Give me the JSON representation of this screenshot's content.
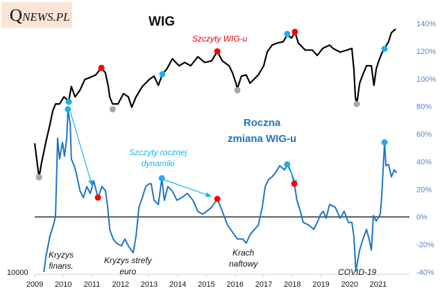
{
  "logo": {
    "q": "Q",
    "rest": "NEWS.PL",
    "bg": "#fbe5d6"
  },
  "chart_data": {
    "type": "line",
    "x_axis": {
      "ticks": [
        "2009",
        "2010",
        "2011",
        "2012",
        "2013",
        "2014",
        "2015",
        "2016",
        "2017",
        "2018",
        "2019",
        "2020",
        "2021"
      ],
      "range": [
        2009,
        2022
      ]
    },
    "left_axis": {
      "tick_labels": [
        "10000"
      ],
      "range": [
        10000,
        70000
      ]
    },
    "right_axis": {
      "tick_labels": [
        "140%",
        "120%",
        "100%",
        "80%",
        "60%",
        "40%",
        "20%",
        "0%",
        "-20%",
        "-40%"
      ],
      "range": [
        -40,
        140
      ]
    },
    "series": [
      {
        "id": "wig",
        "name": "WIG",
        "axis": "left",
        "color": "#000000",
        "points": [
          [
            2009.0,
            41100
          ],
          [
            2009.15,
            32900
          ],
          [
            2009.24,
            36400
          ],
          [
            2009.39,
            41400
          ],
          [
            2009.53,
            45600
          ],
          [
            2009.63,
            48900
          ],
          [
            2009.73,
            50600
          ],
          [
            2009.87,
            50600
          ],
          [
            2010.02,
            52300
          ],
          [
            2010.19,
            51300
          ],
          [
            2010.28,
            54800
          ],
          [
            2010.41,
            52300
          ],
          [
            2010.58,
            53900
          ],
          [
            2010.75,
            56500
          ],
          [
            2010.94,
            57000
          ],
          [
            2011.13,
            57600
          ],
          [
            2011.33,
            59300
          ],
          [
            2011.47,
            58100
          ],
          [
            2011.57,
            54800
          ],
          [
            2011.62,
            52300
          ],
          [
            2011.72,
            50600
          ],
          [
            2011.91,
            50600
          ],
          [
            2012.1,
            53100
          ],
          [
            2012.27,
            52300
          ],
          [
            2012.39,
            49800
          ],
          [
            2012.54,
            52300
          ],
          [
            2012.76,
            54800
          ],
          [
            2013.0,
            56500
          ],
          [
            2013.17,
            57300
          ],
          [
            2013.32,
            55100
          ],
          [
            2013.46,
            57800
          ],
          [
            2013.61,
            59000
          ],
          [
            2013.81,
            61500
          ],
          [
            2014.04,
            59800
          ],
          [
            2014.24,
            60600
          ],
          [
            2014.45,
            59800
          ],
          [
            2014.7,
            62000
          ],
          [
            2014.94,
            60600
          ],
          [
            2015.18,
            61000
          ],
          [
            2015.38,
            63300
          ],
          [
            2015.55,
            61000
          ],
          [
            2015.79,
            59800
          ],
          [
            2015.91,
            58100
          ],
          [
            2016.03,
            55600
          ],
          [
            2016.08,
            54300
          ],
          [
            2016.22,
            57300
          ],
          [
            2016.39,
            57600
          ],
          [
            2016.52,
            55600
          ],
          [
            2016.81,
            57600
          ],
          [
            2017.0,
            59800
          ],
          [
            2017.12,
            63100
          ],
          [
            2017.29,
            64800
          ],
          [
            2017.48,
            65300
          ],
          [
            2017.68,
            65600
          ],
          [
            2017.82,
            67300
          ],
          [
            2017.97,
            66500
          ],
          [
            2018.09,
            68000
          ],
          [
            2018.21,
            65300
          ],
          [
            2018.45,
            63600
          ],
          [
            2018.7,
            63600
          ],
          [
            2018.87,
            62300
          ],
          [
            2019.06,
            64000
          ],
          [
            2019.3,
            64800
          ],
          [
            2019.42,
            64000
          ],
          [
            2019.67,
            63100
          ],
          [
            2019.91,
            63600
          ],
          [
            2020.08,
            64000
          ],
          [
            2020.15,
            59000
          ],
          [
            2020.2,
            52300
          ],
          [
            2020.25,
            50600
          ],
          [
            2020.35,
            55600
          ],
          [
            2020.44,
            57300
          ],
          [
            2020.59,
            59800
          ],
          [
            2020.76,
            59800
          ],
          [
            2020.85,
            55100
          ],
          [
            2020.93,
            59000
          ],
          [
            2021.0,
            60600
          ],
          [
            2021.12,
            62800
          ],
          [
            2021.22,
            64000
          ],
          [
            2021.36,
            65600
          ],
          [
            2021.46,
            67800
          ],
          [
            2021.61,
            68700
          ]
        ]
      },
      {
        "id": "chg",
        "name": "Roczna zmiana WIG-u",
        "axis": "right",
        "color": "#1f72c4",
        "points": [
          [
            2009.32,
            -40
          ],
          [
            2009.39,
            -29
          ],
          [
            2009.53,
            -14
          ],
          [
            2009.68,
            -4
          ],
          [
            2009.73,
            2
          ],
          [
            2009.8,
            57
          ],
          [
            2009.87,
            42
          ],
          [
            2009.97,
            54
          ],
          [
            2010.04,
            44
          ],
          [
            2010.12,
            57
          ],
          [
            2010.16,
            78
          ],
          [
            2010.24,
            67
          ],
          [
            2010.28,
            42
          ],
          [
            2010.38,
            37
          ],
          [
            2010.45,
            32
          ],
          [
            2010.58,
            19
          ],
          [
            2010.7,
            14
          ],
          [
            2010.82,
            22
          ],
          [
            2010.94,
            17
          ],
          [
            2011.06,
            26
          ],
          [
            2011.21,
            14
          ],
          [
            2011.35,
            22
          ],
          [
            2011.47,
            19
          ],
          [
            2011.55,
            7
          ],
          [
            2011.62,
            -9
          ],
          [
            2011.74,
            -16
          ],
          [
            2011.86,
            -19
          ],
          [
            2012.03,
            -21
          ],
          [
            2012.15,
            -16
          ],
          [
            2012.27,
            -21
          ],
          [
            2012.44,
            -26
          ],
          [
            2012.54,
            -14
          ],
          [
            2012.64,
            7
          ],
          [
            2012.76,
            14
          ],
          [
            2012.88,
            22
          ],
          [
            2013.0,
            24
          ],
          [
            2013.07,
            24
          ],
          [
            2013.17,
            12
          ],
          [
            2013.32,
            9
          ],
          [
            2013.44,
            28
          ],
          [
            2013.53,
            12
          ],
          [
            2013.65,
            22
          ],
          [
            2013.8,
            19
          ],
          [
            2013.97,
            12
          ],
          [
            2014.14,
            14
          ],
          [
            2014.33,
            17
          ],
          [
            2014.53,
            12
          ],
          [
            2014.7,
            4
          ],
          [
            2014.87,
            2
          ],
          [
            2015.01,
            4
          ],
          [
            2015.18,
            7
          ],
          [
            2015.38,
            13
          ],
          [
            2015.5,
            7
          ],
          [
            2015.59,
            2
          ],
          [
            2015.74,
            -6
          ],
          [
            2015.91,
            -11
          ],
          [
            2016.08,
            -16
          ],
          [
            2016.27,
            -16
          ],
          [
            2016.39,
            -19
          ],
          [
            2016.52,
            -13
          ],
          [
            2016.68,
            -9
          ],
          [
            2016.81,
            -6
          ],
          [
            2016.95,
            7
          ],
          [
            2017.05,
            22
          ],
          [
            2017.17,
            27
          ],
          [
            2017.29,
            29
          ],
          [
            2017.41,
            32
          ],
          [
            2017.56,
            37
          ],
          [
            2017.73,
            34
          ],
          [
            2017.82,
            38
          ],
          [
            2017.97,
            32
          ],
          [
            2018.07,
            24
          ],
          [
            2018.16,
            12
          ],
          [
            2018.28,
            4
          ],
          [
            2018.38,
            -4
          ],
          [
            2018.58,
            -6
          ],
          [
            2018.75,
            -9
          ],
          [
            2018.87,
            -4
          ],
          [
            2018.99,
            2
          ],
          [
            2019.08,
            4
          ],
          [
            2019.18,
            -1
          ],
          [
            2019.3,
            9
          ],
          [
            2019.5,
            7
          ],
          [
            2019.67,
            -1
          ],
          [
            2019.81,
            4
          ],
          [
            2019.96,
            -4
          ],
          [
            2020.08,
            -4
          ],
          [
            2020.15,
            -14
          ],
          [
            2020.22,
            -39
          ],
          [
            2020.35,
            -24
          ],
          [
            2020.47,
            -16
          ],
          [
            2020.59,
            -9
          ],
          [
            2020.68,
            -16
          ],
          [
            2020.76,
            -24
          ],
          [
            2020.83,
            1
          ],
          [
            2020.93,
            -3
          ],
          [
            2021.07,
            2
          ],
          [
            2021.12,
            14
          ],
          [
            2021.22,
            54
          ],
          [
            2021.27,
            37
          ],
          [
            2021.36,
            38
          ],
          [
            2021.46,
            29
          ],
          [
            2021.56,
            34
          ],
          [
            2021.65,
            32
          ]
        ]
      }
    ],
    "markers": [
      {
        "series": "wig",
        "kind": "peak",
        "color": "#ff0000",
        "x": 2011.33,
        "y": 59300
      },
      {
        "series": "wig",
        "kind": "peak",
        "color": "#ff0000",
        "x": 2015.38,
        "y": 63300
      },
      {
        "series": "wig",
        "kind": "peak",
        "color": "#ff0000",
        "x": 2018.09,
        "y": 68000
      },
      {
        "series": "wig",
        "kind": "low",
        "color": "#a6a6a6",
        "x": 2009.15,
        "y": 32900
      },
      {
        "series": "wig",
        "kind": "low",
        "color": "#a6a6a6",
        "x": 2011.72,
        "y": 49300
      },
      {
        "series": "wig",
        "kind": "low",
        "color": "#a6a6a6",
        "x": 2016.08,
        "y": 53900
      },
      {
        "series": "wig",
        "kind": "low",
        "color": "#a6a6a6",
        "x": 2020.25,
        "y": 50600
      },
      {
        "series": "wig",
        "kind": "dyn-peak",
        "color": "#1fb0ea",
        "x": 2010.19,
        "y": 51100
      },
      {
        "series": "wig",
        "kind": "dyn-peak",
        "color": "#1fb0ea",
        "x": 2013.46,
        "y": 57800
      },
      {
        "series": "wig",
        "kind": "dyn-peak",
        "color": "#1fb0ea",
        "x": 2017.82,
        "y": 67500
      },
      {
        "series": "wig",
        "kind": "dyn-peak",
        "color": "#1fb0ea",
        "x": 2021.22,
        "y": 63900
      },
      {
        "series": "chg",
        "kind": "dyn-peak",
        "color": "#1fb0ea",
        "x": 2010.16,
        "y": 78
      },
      {
        "series": "chg",
        "kind": "dyn-peak",
        "color": "#1fb0ea",
        "x": 2013.44,
        "y": 28
      },
      {
        "series": "chg",
        "kind": "dyn-peak",
        "color": "#1fb0ea",
        "x": 2017.82,
        "y": 38
      },
      {
        "series": "chg",
        "kind": "dyn-peak",
        "color": "#1fb0ea",
        "x": 2021.22,
        "y": 54
      },
      {
        "series": "chg",
        "kind": "peak",
        "color": "#ff0000",
        "x": 2011.21,
        "y": 14
      },
      {
        "series": "chg",
        "kind": "peak",
        "color": "#ff0000",
        "x": 2015.38,
        "y": 13
      },
      {
        "series": "chg",
        "kind": "peak",
        "color": "#ff0000",
        "x": 2018.07,
        "y": 24
      }
    ],
    "arrows": [
      {
        "color": "#1fb0ea",
        "from": [
          2010.25,
          76
        ],
        "to": [
          2011.0,
          23
        ]
      },
      {
        "color": "#1fb0ea",
        "from": [
          2013.5,
          27
        ],
        "to": [
          2015.15,
          15
        ]
      },
      {
        "color": "#1fb0ea",
        "from": [
          2017.88,
          37
        ],
        "to": [
          2018.14,
          23
        ]
      }
    ],
    "zero_line": 0,
    "annotations": {
      "wig_title": "WIG",
      "wig_peaks": "Szczyty  WIG-u",
      "chg_title_1": "Roczna",
      "chg_title_2": "zmiana  WIG-u",
      "dyn_peaks_1": "Szczyty  rocznej",
      "dyn_peaks_2": "dynamiki",
      "crisis_1a": "Kryzys",
      "crisis_1b": "finans.",
      "crisis_2a": "Kryzys strefy",
      "crisis_2b": "euro",
      "crisis_3a": "Krach",
      "crisis_3b": "naftowy",
      "crisis_4": "COVID-19"
    },
    "grid": false,
    "colors": {
      "axis_labels_right": "#5b80c8",
      "wig": "#000000",
      "chg": "#1f72c4",
      "peak": "#ff0000",
      "low": "#a6a6a6",
      "dyn_peak": "#1fb0ea"
    }
  }
}
